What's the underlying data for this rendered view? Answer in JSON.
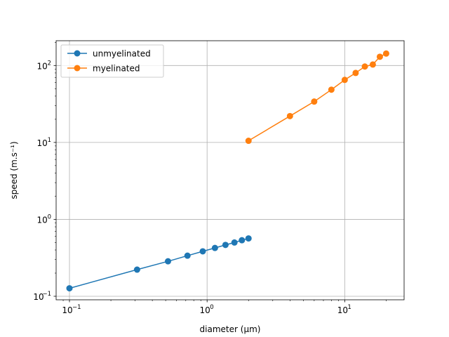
{
  "chart_data": {
    "type": "line",
    "xscale": "log",
    "yscale": "log",
    "xlim": [
      0.08,
      27
    ],
    "ylim": [
      0.09,
      210
    ],
    "grid": true,
    "legend_position": "top-left",
    "xlabel": "diameter (μm)",
    "ylabel": "speed (m.s⁻¹)",
    "x_ticks": [
      {
        "value": 0.1,
        "base": "10",
        "exp": "−1"
      },
      {
        "value": 1,
        "base": "10",
        "exp": "0"
      },
      {
        "value": 10,
        "base": "10",
        "exp": "1"
      }
    ],
    "y_ticks": [
      {
        "value": 0.1,
        "base": "10",
        "exp": "−1"
      },
      {
        "value": 1,
        "base": "10",
        "exp": "0"
      },
      {
        "value": 10,
        "base": "10",
        "exp": "1"
      },
      {
        "value": 100,
        "base": "10",
        "exp": "2"
      }
    ],
    "series": [
      {
        "name": "unmyelinated",
        "color": "#1f77b4",
        "x": [
          0.1,
          0.31,
          0.52,
          0.72,
          0.93,
          1.14,
          1.36,
          1.58,
          1.79,
          2.0
        ],
        "y": [
          0.127,
          0.222,
          0.285,
          0.337,
          0.384,
          0.425,
          0.465,
          0.5,
          0.535,
          0.565
        ]
      },
      {
        "name": "myelinated",
        "color": "#ff7f0e",
        "x": [
          2.0,
          4.0,
          6.0,
          8.0,
          10.0,
          12.0,
          14.0,
          16.0,
          18.0,
          20.0
        ],
        "y": [
          10.5,
          22,
          34,
          48.5,
          65,
          80,
          97,
          103,
          130,
          143
        ]
      }
    ]
  }
}
